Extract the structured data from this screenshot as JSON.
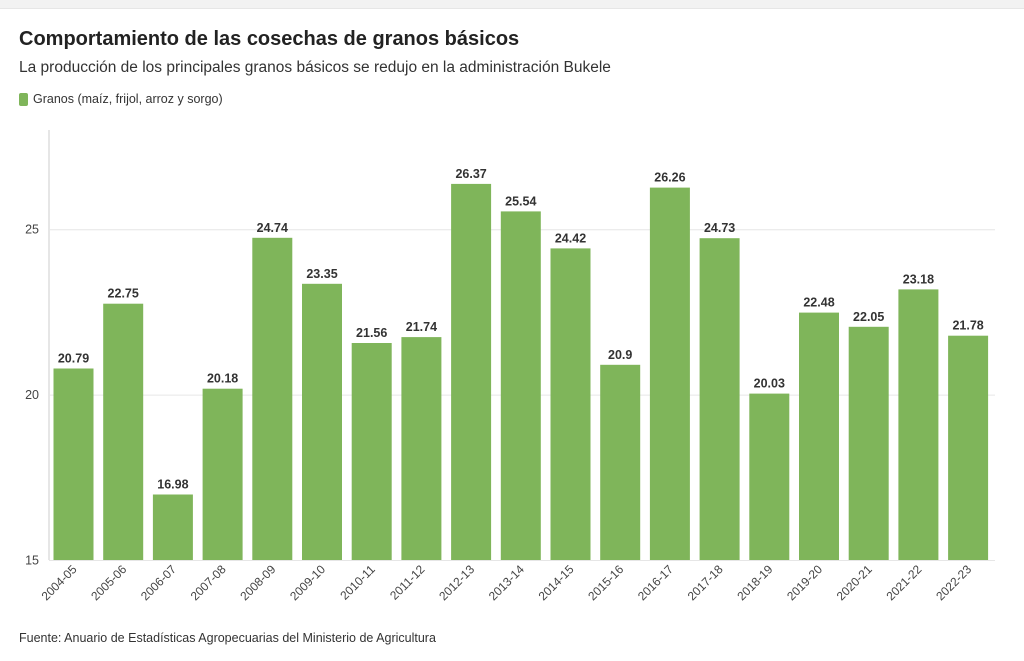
{
  "title": "Comportamiento de las cosechas de granos básicos",
  "subtitle": "La producción de los principales granos básicos se redujo en la administración Bukele",
  "source": "Fuente: Anuario de Estadísticas Agropecuarias del Ministerio de Agricultura",
  "colors": {
    "bar": "#7fb55a",
    "grid": "#e6e6e6",
    "axis": "#cccccc"
  },
  "chart_data": {
    "type": "bar",
    "categories": [
      "2004-05",
      "2005-06",
      "2006-07",
      "2007-08",
      "2008-09",
      "2009-10",
      "2010-11",
      "2011-12",
      "2012-13",
      "2013-14",
      "2014-15",
      "2015-16",
      "2016-17",
      "2017-18",
      "2018-19",
      "2019-20",
      "2020-21",
      "2021-22",
      "2022-23"
    ],
    "series": [
      {
        "name": "Granos (maíz, frijol, arroz y sorgo)",
        "values": [
          20.79,
          22.75,
          16.98,
          20.18,
          24.74,
          23.35,
          21.56,
          21.74,
          26.37,
          25.54,
          24.42,
          20.9,
          26.26,
          24.73,
          20.03,
          22.48,
          22.05,
          23.18,
          21.78
        ],
        "labels": [
          "20.79",
          "22.75",
          "16.98",
          "20.18",
          "24.74",
          "23.35",
          "21.56",
          "21.74",
          "26.37",
          "25.54",
          "24.42",
          "20.9",
          "26.26",
          "24.73",
          "20.03",
          "22.48",
          "22.05",
          "23.18",
          "21.78"
        ]
      }
    ],
    "title": "Comportamiento de las cosechas de granos básicos",
    "xlabel": "",
    "ylabel": "",
    "ylim": [
      15,
      28
    ],
    "yticks": [
      15,
      20,
      25
    ],
    "ytick_labels": [
      "15",
      "20",
      "25"
    ],
    "grid": true,
    "legend": "top-left"
  }
}
